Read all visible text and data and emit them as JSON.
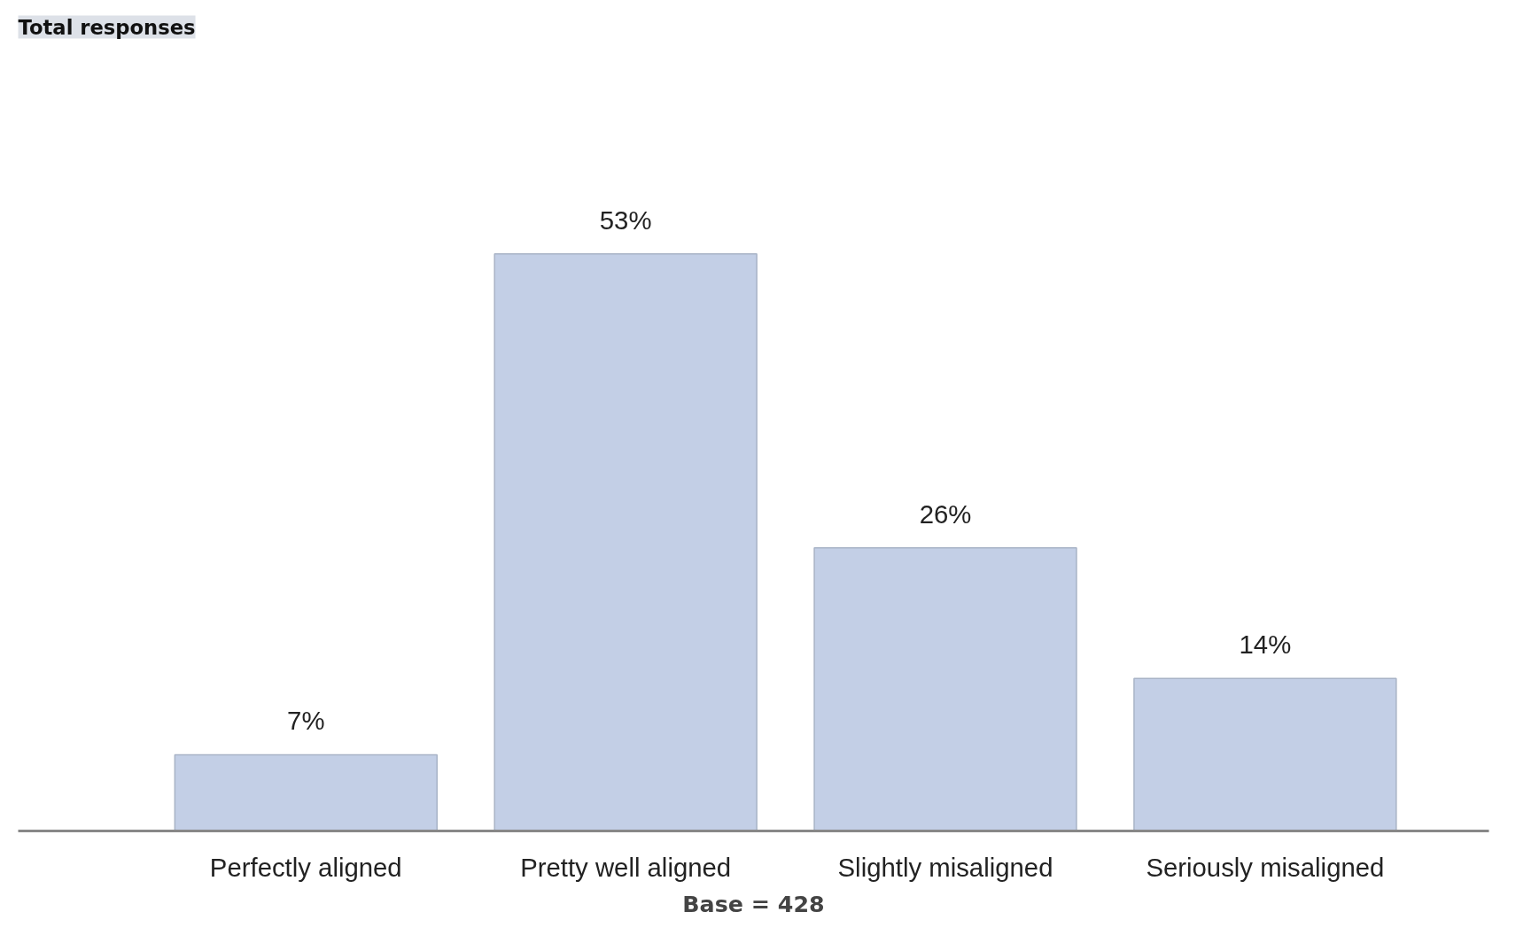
{
  "chart_data": {
    "type": "bar",
    "title": "Total responses",
    "categories": [
      "Perfectly aligned",
      "Pretty well aligned",
      "Slightly misaligned",
      "Seriously misaligned"
    ],
    "values": [
      7,
      53,
      26,
      14
    ],
    "value_labels": [
      "7%",
      "53%",
      "26%",
      "14%"
    ],
    "color": "#c3cfe6",
    "tick_labels": "x",
    "annotations": [
      "Base = 428"
    ]
  }
}
